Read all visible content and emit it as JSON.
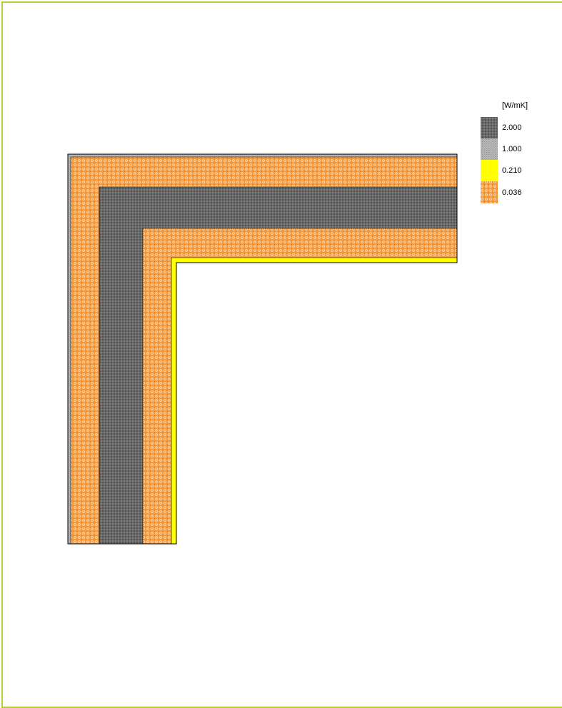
{
  "legend": {
    "unit": "[W/mK]",
    "items": [
      {
        "value": "2.000",
        "material": "dark-dotted",
        "color": "#5b5b5b"
      },
      {
        "value": "1.000",
        "material": "grey-fine",
        "color": "#a8a8a8"
      },
      {
        "value": "0.210",
        "material": "yellow",
        "color": "#ffff00"
      },
      {
        "value": "0.036",
        "material": "orange-insulation",
        "color": "#f0922c"
      }
    ]
  },
  "colors": {
    "frame": "#b5cc3c",
    "outline": "#000000",
    "background": "#ffffff"
  }
}
